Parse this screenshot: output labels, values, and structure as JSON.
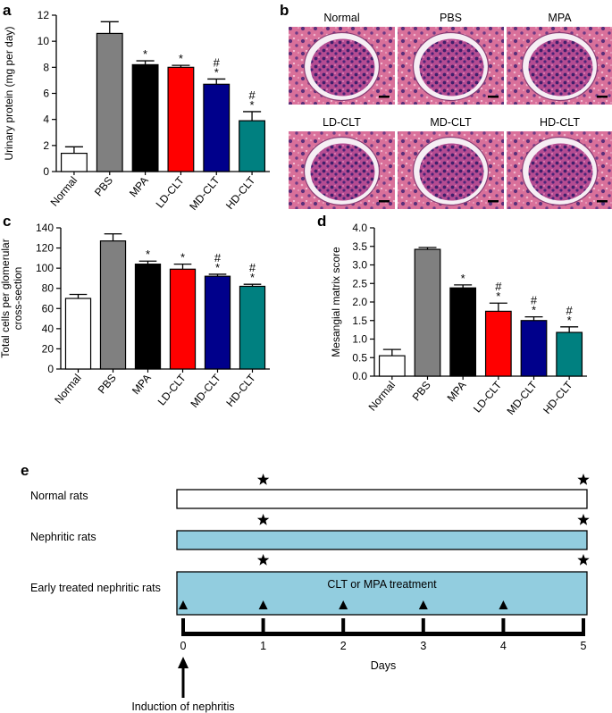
{
  "panels": {
    "a": {
      "letter": "a",
      "chart_data": {
        "type": "bar",
        "ylabel": "Urinary protein (mg per day)",
        "ylim": [
          0,
          12
        ],
        "yticks": [
          0,
          2,
          4,
          6,
          8,
          10,
          12
        ],
        "categories": [
          "Normal",
          "PBS",
          "MPA",
          "LD-CLT",
          "MD-CLT",
          "HD-CLT"
        ],
        "values": [
          1.4,
          10.6,
          8.2,
          8.0,
          6.7,
          3.9
        ],
        "errors": [
          0.5,
          0.9,
          0.3,
          0.15,
          0.4,
          0.7
        ],
        "colors": [
          "#ffffff",
          "#808080",
          "#000000",
          "#ff0000",
          "#00008b",
          "#008080"
        ],
        "marks": [
          [],
          [],
          [
            "*"
          ],
          [
            "*"
          ],
          [
            "*",
            "#"
          ],
          [
            "*",
            "#"
          ]
        ]
      }
    },
    "b": {
      "letter": "b",
      "images": [
        {
          "label": "Normal"
        },
        {
          "label": "PBS"
        },
        {
          "label": "MPA"
        },
        {
          "label": "LD-CLT"
        },
        {
          "label": "MD-CLT"
        },
        {
          "label": "HD-CLT"
        }
      ]
    },
    "c": {
      "letter": "c",
      "chart_data": {
        "type": "bar",
        "ylabel_lines": [
          "Total cells per glomerular",
          "cross-section"
        ],
        "ylim": [
          0,
          140
        ],
        "yticks": [
          0,
          20,
          40,
          60,
          80,
          100,
          120,
          140
        ],
        "categories": [
          "Normal",
          "PBS",
          "MPA",
          "LD-CLT",
          "MD-CLT",
          "HD-CLT"
        ],
        "values": [
          70,
          127,
          104,
          99,
          92,
          82
        ],
        "errors": [
          4,
          7,
          3,
          5,
          2,
          2
        ],
        "colors": [
          "#ffffff",
          "#808080",
          "#000000",
          "#ff0000",
          "#00008b",
          "#008080"
        ],
        "marks": [
          [],
          [],
          [
            "*"
          ],
          [
            "*"
          ],
          [
            "*",
            "#"
          ],
          [
            "*",
            "#"
          ]
        ]
      }
    },
    "d": {
      "letter": "d",
      "chart_data": {
        "type": "bar",
        "ylabel": "Mesangial matrix score",
        "ylim": [
          0,
          4.0
        ],
        "yticks": [
          "0.0",
          "0.5",
          "1.0",
          "1.5",
          "2.0",
          "2.5",
          "3.0",
          "3.5",
          "4.0"
        ],
        "categories": [
          "Normal",
          "PBS",
          "MPA",
          "LD-CLT",
          "MD-CLT",
          "HD-CLT"
        ],
        "values": [
          0.55,
          3.42,
          2.38,
          1.75,
          1.5,
          1.18
        ],
        "errors": [
          0.17,
          0.05,
          0.08,
          0.22,
          0.1,
          0.15
        ],
        "colors": [
          "#ffffff",
          "#808080",
          "#000000",
          "#ff0000",
          "#00008b",
          "#008080"
        ],
        "marks": [
          [],
          [],
          [
            "*"
          ],
          [
            "*",
            "#"
          ],
          [
            "*",
            "#"
          ],
          [
            "*",
            "#"
          ]
        ]
      }
    },
    "e": {
      "letter": "e",
      "rows": [
        "Normal rats",
        "Nephritic rats",
        "Early treated nephritic rats"
      ],
      "treatment_label": "CLT or MPA treatment",
      "star_days": [
        1,
        5
      ],
      "triangle_days": [
        0,
        1,
        2,
        3,
        4
      ],
      "day_ticks": [
        "0",
        "1",
        "2",
        "3",
        "4",
        "5"
      ],
      "axis_label": "Days",
      "induction_label": "Induction of nephritis",
      "bar_fill": "#92cddf"
    }
  }
}
